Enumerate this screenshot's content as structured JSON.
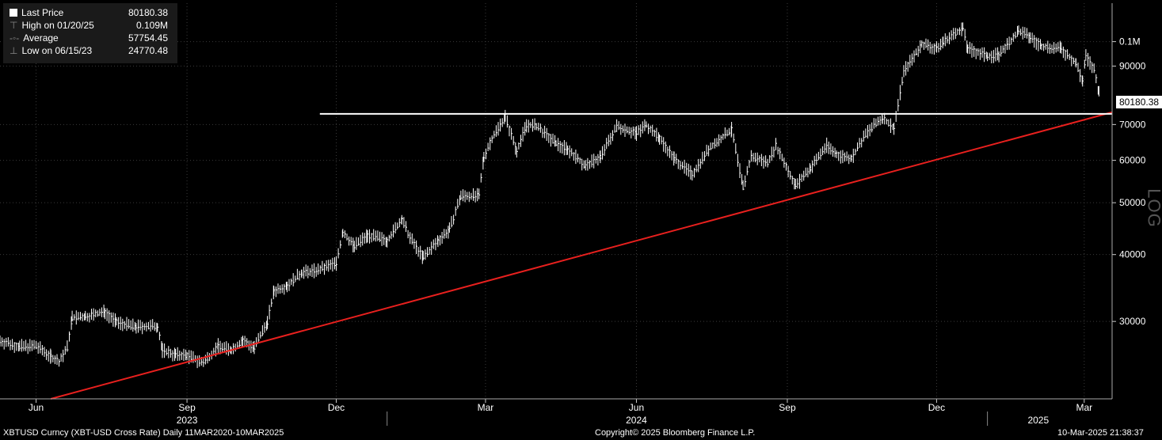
{
  "legend": {
    "last_label": "Last Price",
    "last_value": "80180.38",
    "high_label": "High on 01/20/25",
    "high_value": "0.109M",
    "avg_label": "Average",
    "avg_value": "57754.45",
    "low_label": "Low on 06/15/23",
    "low_value": "24770.48"
  },
  "last_tag": "80180.38",
  "scale_label": "LOG",
  "footer": {
    "left": "XBTUSD Curncy (XBT-USD Cross Rate)  Daily 11MAR2020-10MAR2025",
    "center": "Copyright© 2025 Bloomberg Finance L.P.",
    "right": "10-Mar-2025 21:38:37"
  },
  "colors": {
    "background": "#000000",
    "price": "#ffffff",
    "trendline": "#e8201e",
    "resistance": "#ffffff"
  },
  "chart_data": {
    "type": "line",
    "y_scale": "log",
    "ylim": [
      21500,
      118000
    ],
    "y_ticks": [
      {
        "value": 30000,
        "label": "30000"
      },
      {
        "value": 40000,
        "label": "40000"
      },
      {
        "value": 50000,
        "label": "50000"
      },
      {
        "value": 60000,
        "label": "60000"
      },
      {
        "value": 70000,
        "label": "70000"
      },
      {
        "value": 90000,
        "label": "90000"
      },
      {
        "value": 100000,
        "label": "0.1M"
      }
    ],
    "x_range": [
      "2023-05-10",
      "2025-03-18"
    ],
    "x_ticks": [
      {
        "date": "2023-06-01",
        "label": "Jun"
      },
      {
        "date": "2023-09-01",
        "label": "Sep"
      },
      {
        "date": "2023-12-01",
        "label": "Dec"
      },
      {
        "date": "2024-03-01",
        "label": "Mar"
      },
      {
        "date": "2024-06-01",
        "label": "Jun"
      },
      {
        "date": "2024-09-01",
        "label": "Sep"
      },
      {
        "date": "2024-12-01",
        "label": "Dec"
      },
      {
        "date": "2025-03-01",
        "label": "Mar"
      }
    ],
    "year_labels": [
      {
        "date": "2023-09-01",
        "label": "2023"
      },
      {
        "date": "2024-06-01",
        "label": "2024"
      },
      {
        "date": "2025-02-01",
        "label": "2025"
      }
    ],
    "year_dividers": [
      "2024-01-01",
      "2025-01-01"
    ],
    "series": [
      {
        "style": "price-bars",
        "points": [
          [
            "2023-05-10",
            27600
          ],
          [
            "2023-05-22",
            26900
          ],
          [
            "2023-06-01",
            27000
          ],
          [
            "2023-06-10",
            25800
          ],
          [
            "2023-06-15",
            25200
          ],
          [
            "2023-06-20",
            26800
          ],
          [
            "2023-06-23",
            30500
          ],
          [
            "2023-07-01",
            30600
          ],
          [
            "2023-07-13",
            31300
          ],
          [
            "2023-07-20",
            29900
          ],
          [
            "2023-08-01",
            29300
          ],
          [
            "2023-08-14",
            29400
          ],
          [
            "2023-08-17",
            26500
          ],
          [
            "2023-08-25",
            26000
          ],
          [
            "2023-09-01",
            25900
          ],
          [
            "2023-09-11",
            25100
          ],
          [
            "2023-09-20",
            27000
          ],
          [
            "2023-09-28",
            26500
          ],
          [
            "2023-10-05",
            27600
          ],
          [
            "2023-10-12",
            26800
          ],
          [
            "2023-10-20",
            29900
          ],
          [
            "2023-10-24",
            34200
          ],
          [
            "2023-11-01",
            35000
          ],
          [
            "2023-11-10",
            37000
          ],
          [
            "2023-11-20",
            37400
          ],
          [
            "2023-12-01",
            38600
          ],
          [
            "2023-12-05",
            44000
          ],
          [
            "2023-12-12",
            41500
          ],
          [
            "2023-12-20",
            43500
          ],
          [
            "2024-01-01",
            42500
          ],
          [
            "2024-01-10",
            46500
          ],
          [
            "2024-01-15",
            43000
          ],
          [
            "2024-01-23",
            39500
          ],
          [
            "2024-02-01",
            42500
          ],
          [
            "2024-02-08",
            44500
          ],
          [
            "2024-02-15",
            51500
          ],
          [
            "2024-02-26",
            51500
          ],
          [
            "2024-02-29",
            61000
          ],
          [
            "2024-03-05",
            66000
          ],
          [
            "2024-03-13",
            72500
          ],
          [
            "2024-03-20",
            62500
          ],
          [
            "2024-03-26",
            70000
          ],
          [
            "2024-04-01",
            69500
          ],
          [
            "2024-04-13",
            64500
          ],
          [
            "2024-04-20",
            63000
          ],
          [
            "2024-05-01",
            58500
          ],
          [
            "2024-05-10",
            61000
          ],
          [
            "2024-05-20",
            69500
          ],
          [
            "2024-06-01",
            67500
          ],
          [
            "2024-06-07",
            70000
          ],
          [
            "2024-06-15",
            66000
          ],
          [
            "2024-06-24",
            60500
          ],
          [
            "2024-07-05",
            56500
          ],
          [
            "2024-07-15",
            63000
          ],
          [
            "2024-07-29",
            68500
          ],
          [
            "2024-08-05",
            53500
          ],
          [
            "2024-08-10",
            61000
          ],
          [
            "2024-08-20",
            59500
          ],
          [
            "2024-08-25",
            64000
          ],
          [
            "2024-09-06",
            53800
          ],
          [
            "2024-09-15",
            58000
          ],
          [
            "2024-09-25",
            64000
          ],
          [
            "2024-10-01",
            61500
          ],
          [
            "2024-10-10",
            60500
          ],
          [
            "2024-10-20",
            68000
          ],
          [
            "2024-10-29",
            72000
          ],
          [
            "2024-11-05",
            69000
          ],
          [
            "2024-11-11",
            88000
          ],
          [
            "2024-11-22",
            99000
          ],
          [
            "2024-12-01",
            97000
          ],
          [
            "2024-12-05",
            100000
          ],
          [
            "2024-12-17",
            106000
          ],
          [
            "2024-12-20",
            97000
          ],
          [
            "2025-01-01",
            94000
          ],
          [
            "2025-01-08",
            94500
          ],
          [
            "2025-01-20",
            104500
          ],
          [
            "2025-01-27",
            102000
          ],
          [
            "2025-02-03",
            98000
          ],
          [
            "2025-02-15",
            97000
          ],
          [
            "2025-02-24",
            91000
          ],
          [
            "2025-02-28",
            84500
          ],
          [
            "2025-03-02",
            94000
          ],
          [
            "2025-03-07",
            88500
          ],
          [
            "2025-03-10",
            80180
          ]
        ]
      },
      {
        "style": "trendline-red",
        "points": [
          [
            "2023-06-10",
            21500
          ],
          [
            "2025-03-18",
            73800
          ]
        ]
      },
      {
        "style": "resistance-white",
        "points": [
          [
            "2023-11-21",
            73300
          ],
          [
            "2025-03-18",
            73300
          ]
        ]
      }
    ]
  }
}
